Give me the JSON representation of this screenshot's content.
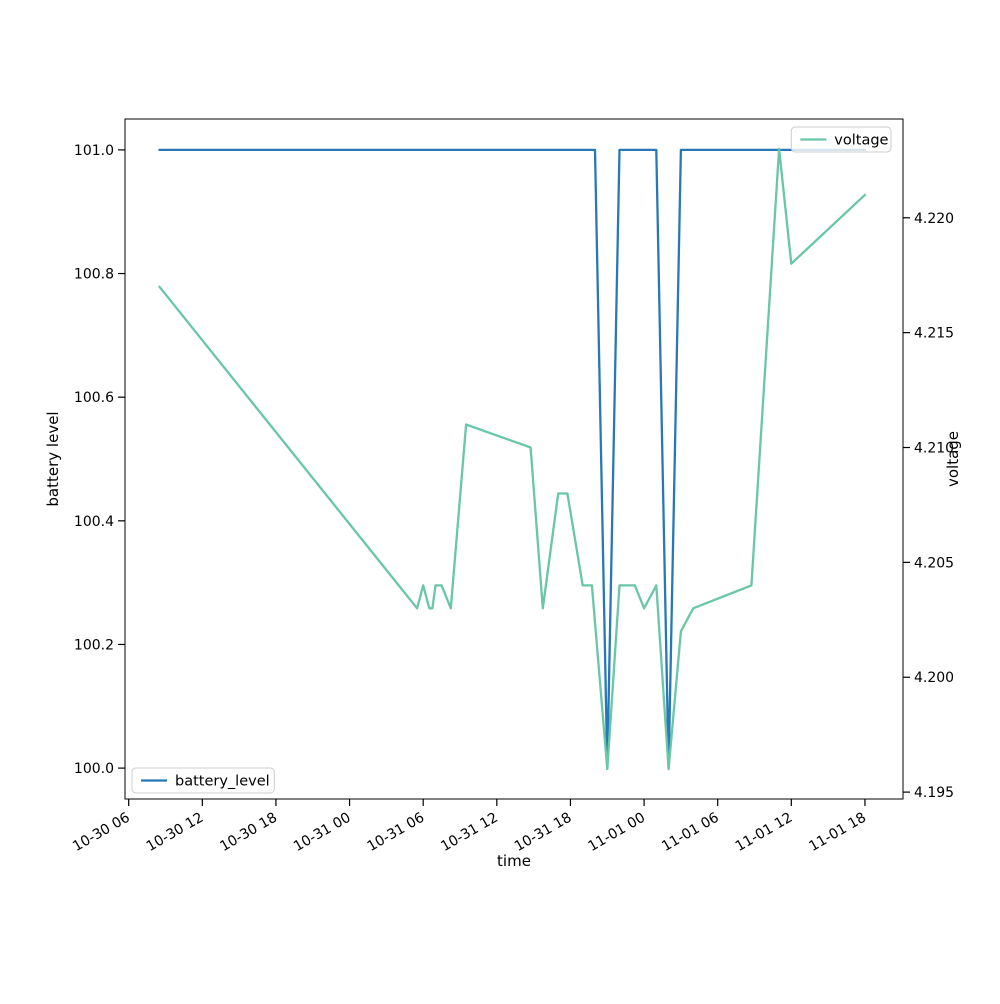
{
  "figure": {
    "xlabel": "time",
    "ylabel_left": "battery level",
    "ylabel_right": "voltage"
  },
  "legend_top_right": {
    "label": "voltage"
  },
  "legend_bottom_left": {
    "label": "battery_level"
  },
  "chart_data": {
    "type": "line",
    "title": "",
    "xlabel": "time",
    "ylabel_left": "battery level",
    "ylabel_right": "voltage",
    "grid": false,
    "x_ticks": {
      "labels": [
        "10-30 06",
        "10-30 12",
        "10-30 18",
        "10-31 00",
        "10-31 06",
        "10-31 12",
        "10-31 18",
        "11-01 00",
        "11-01 06",
        "11-01 12",
        "11-01 18"
      ]
    },
    "y_left_ticks": {
      "labels": [
        "100.0",
        "100.2",
        "100.4",
        "100.6",
        "100.8",
        "101.0"
      ],
      "values": [
        100.0,
        100.2,
        100.4,
        100.6,
        100.8,
        101.0
      ]
    },
    "y_right_ticks": {
      "labels": [
        "4.195",
        "4.200",
        "4.205",
        "4.210",
        "4.215",
        "4.220"
      ],
      "values": [
        4.195,
        4.2,
        4.205,
        4.21,
        4.215,
        4.22
      ]
    },
    "ylim_left": [
      99.95,
      101.05
    ],
    "ylim_right": [
      4.1947,
      4.2243
    ],
    "xlim_hours_since_10-30_00:00": [
      5.7,
      69.1
    ],
    "legend": [
      {
        "label": "battery_level",
        "loc": "lower left"
      },
      {
        "label": "voltage",
        "loc": "upper right"
      }
    ],
    "series": [
      {
        "name": "battery_level",
        "axis": "left",
        "color": "#2878b5",
        "points": [
          [
            "10-30 08:30",
            101.0
          ],
          [
            "10-31 20:00",
            101.0
          ],
          [
            "10-31 21:00",
            100.0
          ],
          [
            "10-31 22:00",
            101.0
          ],
          [
            "11-01 01:00",
            101.0
          ],
          [
            "11-01 02:00",
            100.0
          ],
          [
            "11-01 03:00",
            101.0
          ],
          [
            "11-01 18:00",
            101.0
          ]
        ]
      },
      {
        "name": "voltage",
        "axis": "right",
        "color": "#69c6a6",
        "points": [
          [
            "10-30 08:30",
            4.217
          ],
          [
            "10-31 05:30",
            4.203
          ],
          [
            "10-31 06:00",
            4.204
          ],
          [
            "10-31 06:30",
            4.203
          ],
          [
            "10-31 06:45",
            4.203
          ],
          [
            "10-31 07:00",
            4.204
          ],
          [
            "10-31 07:30",
            4.204
          ],
          [
            "10-31 08:15",
            4.203
          ],
          [
            "10-31 09:30",
            4.211
          ],
          [
            "10-31 14:45",
            4.21
          ],
          [
            "10-31 15:45",
            4.203
          ],
          [
            "10-31 17:00",
            4.208
          ],
          [
            "10-31 17:45",
            4.208
          ],
          [
            "10-31 19:00",
            4.204
          ],
          [
            "10-31 19:45",
            4.204
          ],
          [
            "10-31 21:00",
            4.196
          ],
          [
            "10-31 22:00",
            4.204
          ],
          [
            "10-31 23:15",
            4.204
          ],
          [
            "11-01 00:00",
            4.203
          ],
          [
            "11-01 01:00",
            4.204
          ],
          [
            "11-01 02:00",
            4.196
          ],
          [
            "11-01 03:00",
            4.202
          ],
          [
            "11-01 04:00",
            4.203
          ],
          [
            "11-01 08:45",
            4.204
          ],
          [
            "11-01 11:00",
            4.223
          ],
          [
            "11-01 12:00",
            4.218
          ],
          [
            "11-01 18:00",
            4.221
          ]
        ]
      }
    ]
  }
}
